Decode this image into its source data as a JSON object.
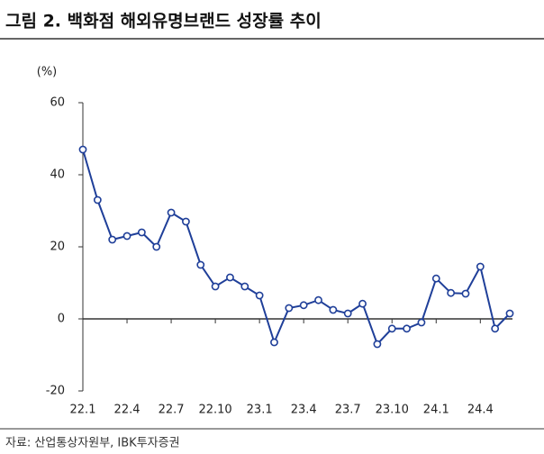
{
  "chart_data": {
    "type": "line",
    "title": "그림 2. 백화점 해외유명브랜드 성장률 추이",
    "y_label": "(%)",
    "source": "자료: 산업통상자원부, IBK투자증권",
    "categories": [
      "22.1",
      null,
      null,
      "22.4",
      null,
      null,
      "22.7",
      null,
      null,
      "22.10",
      null,
      null,
      "23.1",
      null,
      null,
      "23.4",
      null,
      null,
      "23.7",
      null,
      null,
      "23.10",
      null,
      null,
      "24.1",
      null,
      null,
      "24.4",
      null,
      null
    ],
    "series": [
      {
        "name": "성장률",
        "color": "#1f3f99",
        "values": [
          47,
          33,
          22,
          23,
          24,
          20,
          29.5,
          27,
          15,
          9,
          11.5,
          9,
          6.5,
          -6.5,
          3,
          3.8,
          5.2,
          2.5,
          1.5,
          4.2,
          -7,
          -2.7,
          -2.7,
          -1,
          11.2,
          7.2,
          7,
          14.5,
          -2.7,
          1.5
        ]
      }
    ],
    "ylim": [
      -20,
      60
    ],
    "yticks": [
      -20,
      0,
      20,
      40,
      60
    ],
    "grid": false,
    "legend": false
  }
}
